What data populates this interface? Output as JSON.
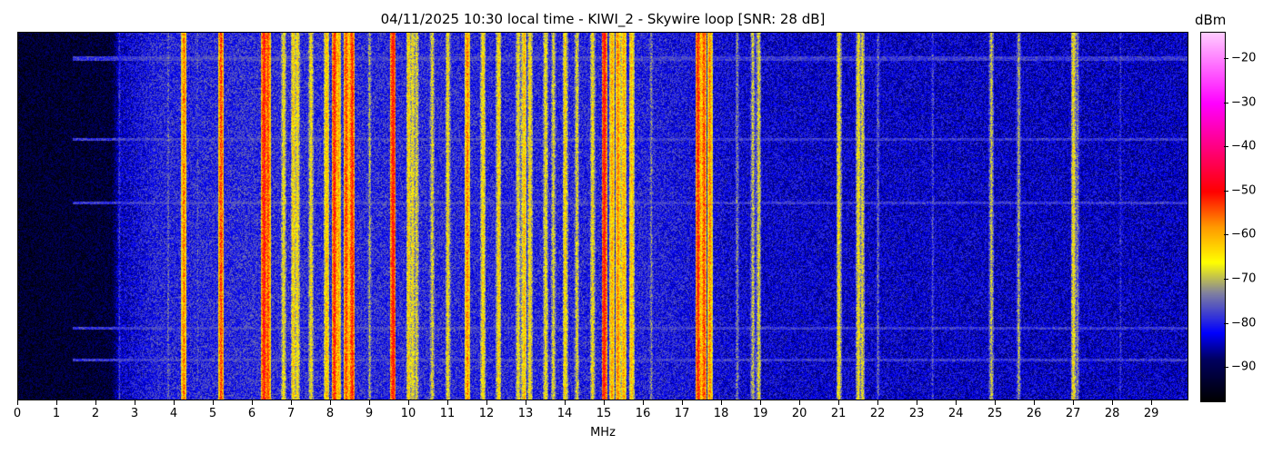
{
  "chart_data": {
    "type": "heatmap",
    "title": "04/11/2025 10:30 local time - KIWI_2 - Skywire loop [SNR: 28 dB]",
    "xlabel": "MHz",
    "xlim": [
      0,
      29.95
    ],
    "xticks": [
      0,
      1,
      2,
      3,
      4,
      5,
      6,
      7,
      8,
      9,
      10,
      11,
      12,
      13,
      14,
      15,
      16,
      17,
      18,
      19,
      20,
      21,
      22,
      23,
      24,
      25,
      26,
      27,
      28,
      29
    ],
    "colorbar": {
      "label": "dBm",
      "range": [
        -97.6,
        -14
      ],
      "ticks": [
        -20,
        -30,
        -40,
        -50,
        -60,
        -70,
        -80,
        -90
      ],
      "colormap": [
        [
          -97.6,
          "#000000"
        ],
        [
          -88,
          "#000060"
        ],
        [
          -82,
          "#0000ff"
        ],
        [
          -73,
          "#8080a0"
        ],
        [
          -66,
          "#ffff00"
        ],
        [
          -58,
          "#ff9900"
        ],
        [
          -50,
          "#ff0000"
        ],
        [
          -30,
          "#ff00ff"
        ],
        [
          -14,
          "#ffccff"
        ]
      ]
    },
    "noise_floor": [
      [
        0,
        -93
      ],
      [
        2.4,
        -92
      ],
      [
        2.6,
        -84
      ],
      [
        3.5,
        -80
      ],
      [
        6,
        -79
      ],
      [
        16,
        -80
      ],
      [
        19,
        -83
      ],
      [
        30,
        -84
      ]
    ],
    "signals": [
      [
        2.6,
        -78
      ],
      [
        3.85,
        -74
      ],
      [
        4.25,
        -55
      ],
      [
        4.6,
        -76
      ],
      [
        5.2,
        -52
      ],
      [
        6.3,
        -48
      ],
      [
        6.4,
        -52
      ],
      [
        6.8,
        -64
      ],
      [
        7.05,
        -62
      ],
      [
        7.15,
        -63
      ],
      [
        7.5,
        -64
      ],
      [
        7.9,
        -60
      ],
      [
        8.1,
        -50
      ],
      [
        8.2,
        -58
      ],
      [
        8.4,
        -52
      ],
      [
        8.55,
        -50
      ],
      [
        9.0,
        -70
      ],
      [
        9.6,
        -48
      ],
      [
        10.0,
        -62
      ],
      [
        10.1,
        -64
      ],
      [
        10.2,
        -66
      ],
      [
        10.6,
        -66
      ],
      [
        11.0,
        -64
      ],
      [
        11.5,
        -56
      ],
      [
        11.9,
        -62
      ],
      [
        12.3,
        -62
      ],
      [
        12.8,
        -64
      ],
      [
        12.95,
        -60
      ],
      [
        13.1,
        -63
      ],
      [
        13.5,
        -64
      ],
      [
        13.7,
        -66
      ],
      [
        14.0,
        -62
      ],
      [
        14.3,
        -66
      ],
      [
        14.7,
        -64
      ],
      [
        15.0,
        -48
      ],
      [
        15.2,
        -58
      ],
      [
        15.35,
        -56
      ],
      [
        15.5,
        -58
      ],
      [
        15.7,
        -60
      ],
      [
        16.2,
        -72
      ],
      [
        17.4,
        -50
      ],
      [
        17.55,
        -52
      ],
      [
        17.7,
        -56
      ],
      [
        18.4,
        -72
      ],
      [
        18.8,
        -68
      ],
      [
        18.95,
        -66
      ],
      [
        21.0,
        -64
      ],
      [
        21.5,
        -64
      ],
      [
        21.6,
        -66
      ],
      [
        22.0,
        -74
      ],
      [
        23.4,
        -76
      ],
      [
        24.9,
        -68
      ],
      [
        25.6,
        -70
      ],
      [
        27.0,
        -64
      ],
      [
        27.1,
        -72
      ],
      [
        28.2,
        -78
      ]
    ]
  }
}
